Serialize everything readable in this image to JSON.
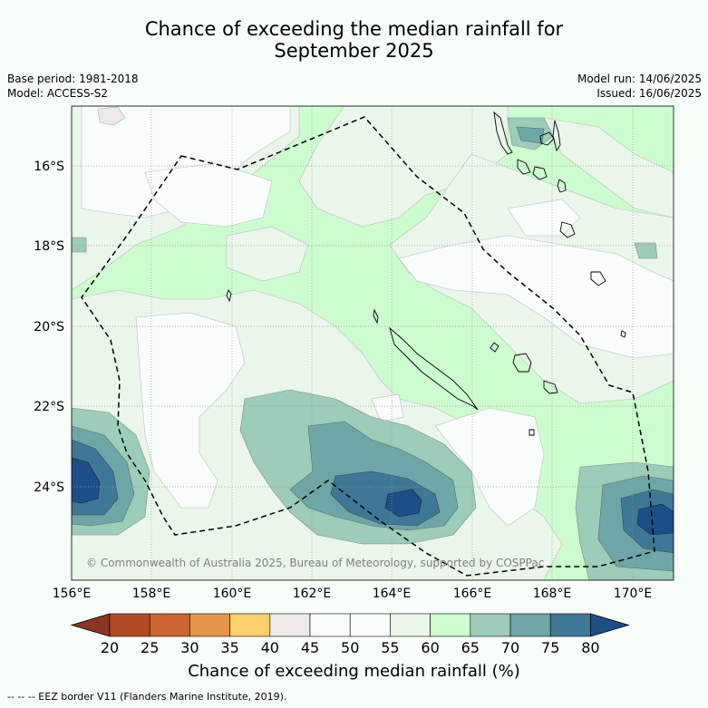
{
  "title_line1": "Chance of exceeding the median rainfall for",
  "title_line2": "September 2025",
  "base_period": "Base period: 1981-2018",
  "model": "Model: ACCESS-S2",
  "model_run": "Model run: 14/06/2025",
  "issued": "Issued: 16/06/2025",
  "watermark": "© Commonwealth of Australia 2025, Bureau of Meteorology, supported by COSPPac",
  "footnote": "-- -- -- EEZ border V11 (Flanders Marine Institute, 2019).",
  "colorbar": {
    "title": "Chance of exceeding median rainfall (%)",
    "ticks": [
      "20",
      "25",
      "30",
      "35",
      "40",
      "45",
      "50",
      "55",
      "60",
      "65",
      "70",
      "75",
      "80"
    ],
    "colors": [
      "#b34a24",
      "#cd6432",
      "#e4954a",
      "#fdd06a",
      "#ece9e6",
      "#f8fdfb",
      "#f8fdfb",
      "#eaf6ea",
      "#ccfdce",
      "#9bcdb8",
      "#6ea6a8",
      "#3f7797"
    ],
    "under_color": "#8c3520",
    "over_color": "#1c4f89"
  },
  "map": {
    "lat_labels": [
      "16°S",
      "18°S",
      "20°S",
      "22°S",
      "24°S"
    ],
    "lon_labels": [
      "156°E",
      "158°E",
      "160°E",
      "162°E",
      "164°E",
      "166°E",
      "168°E",
      "170°E"
    ]
  }
}
